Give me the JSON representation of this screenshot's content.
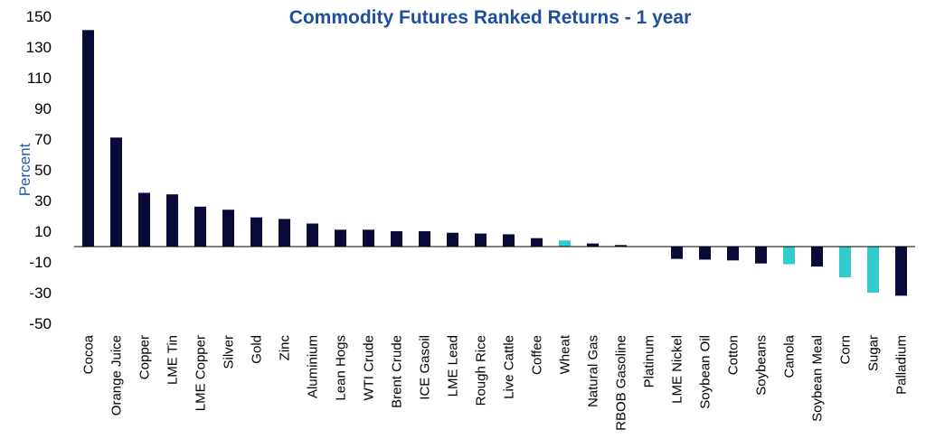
{
  "chart_data": {
    "type": "bar",
    "title": "Commodity Futures Ranked Returns - 1 year",
    "ylabel": "Percent",
    "xlabel": "",
    "ylim": [
      -50,
      150
    ],
    "yticks": [
      150,
      130,
      110,
      90,
      70,
      50,
      30,
      10,
      -10,
      -30,
      -50
    ],
    "grid": false,
    "legend": "none",
    "categories": [
      "Cocoa",
      "Orange Juice",
      "Copper",
      "LME Tin",
      "LME Copper",
      "Silver",
      "Gold",
      "Zinc",
      "Aluminium",
      "Lean Hogs",
      "WTI Crude",
      "Brent Crude",
      "ICE Gasoil",
      "LME Lead",
      "Rough Rice",
      "Live Cattle",
      "Coffee",
      "Wheat",
      "Natural Gas",
      "RBOB Gasoline",
      "Platinum",
      "LME Nickel",
      "Soybean Oil",
      "Cotton",
      "Soybeans",
      "Canola",
      "Soybean Meal",
      "Corn",
      "Sugar",
      "Palladium"
    ],
    "values": [
      141,
      71,
      35,
      34,
      26,
      24,
      19,
      18,
      15,
      11,
      11,
      10,
      10,
      9,
      8.5,
      8,
      5.5,
      4,
      2,
      1,
      0.3,
      -8,
      -8.5,
      -9,
      -11,
      -11.5,
      -13,
      -20,
      -30,
      -32
    ],
    "colors": {
      "default": "#0a0a3a",
      "highlight": "#33cccc",
      "title": "#1f4e9c",
      "ylabel": "#1f5faa",
      "axis": "#000000"
    },
    "highlighted": [
      "Wheat",
      "Canola",
      "Corn",
      "Sugar"
    ]
  }
}
